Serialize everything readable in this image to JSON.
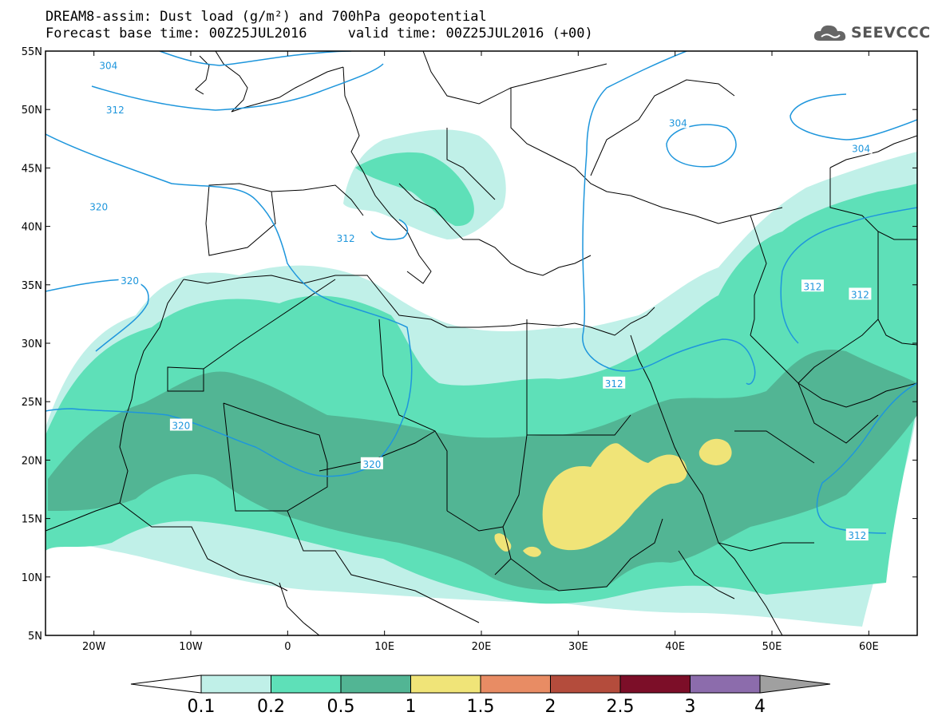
{
  "header": {
    "title_line1": "DREAM8-assim: Dust load (g/m²) and 700hPa geopotential",
    "title_line2": "Forecast base time: 00Z25JUL2016     valid time: 00Z25JUL2016 (+00)"
  },
  "logo": {
    "text": "SEEVCCC",
    "icon": "cloud-icon"
  },
  "axes": {
    "lat_labels": [
      "55N",
      "50N",
      "45N",
      "40N",
      "35N",
      "30N",
      "25N",
      "20N",
      "15N",
      "10N",
      "5N"
    ],
    "lon_labels": [
      "20W",
      "10W",
      "0",
      "10E",
      "20E",
      "30E",
      "40E",
      "50E",
      "60E"
    ],
    "lat_range": [
      5,
      55
    ],
    "lon_range": [
      -25,
      65
    ]
  },
  "colorbar": {
    "levels": [
      "0.1",
      "0.2",
      "0.5",
      "1",
      "1.5",
      "2",
      "2.5",
      "3",
      "4"
    ],
    "colors": [
      "#c0f0e8",
      "#5ee0b8",
      "#52b594",
      "#f0e478",
      "#e88c64",
      "#b44c3c",
      "#7c0e28",
      "#8c6cac",
      "#a0a0a0"
    ]
  },
  "isolines": {
    "color": "#1e96dc",
    "labels": [
      {
        "text": "304",
        "lon": -18.5,
        "lat": 53.8
      },
      {
        "text": "312",
        "lon": -17.8,
        "lat": 50.0
      },
      {
        "text": "320",
        "lon": -19.5,
        "lat": 41.7
      },
      {
        "text": "312",
        "lon": 6.0,
        "lat": 39.0
      },
      {
        "text": "320",
        "lon": -16.3,
        "lat": 35.4
      },
      {
        "text": "320",
        "lon": -11.0,
        "lat": 23.0
      },
      {
        "text": "320",
        "lon": 8.7,
        "lat": 19.7
      },
      {
        "text": "312",
        "lon": 33.7,
        "lat": 26.6
      },
      {
        "text": "312",
        "lon": 54.2,
        "lat": 34.9
      },
      {
        "text": "312",
        "lon": 59.1,
        "lat": 34.2
      },
      {
        "text": "304",
        "lon": 40.3,
        "lat": 48.9
      },
      {
        "text": "304",
        "lon": 59.2,
        "lat": 46.7
      },
      {
        "text": "312",
        "lon": 58.8,
        "lat": 13.6
      }
    ]
  }
}
